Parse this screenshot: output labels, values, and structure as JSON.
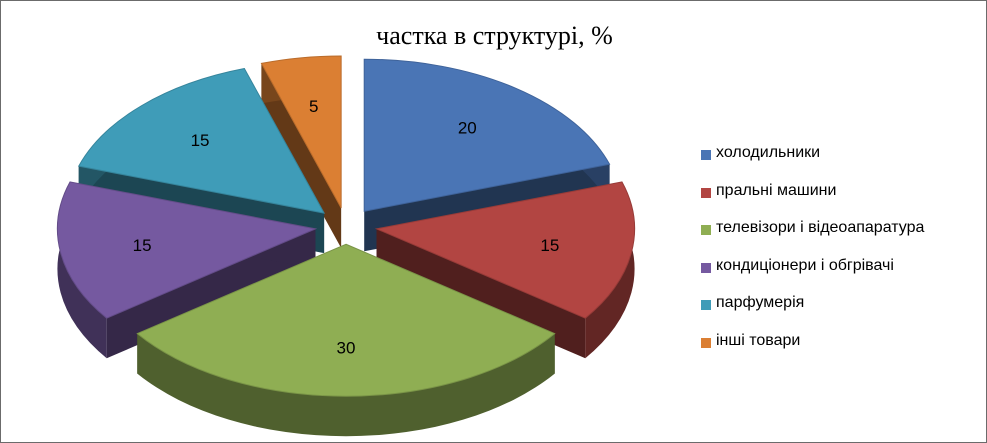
{
  "chart_data": {
    "type": "pie",
    "style": "3d-exploded",
    "title": "частка в структурі, %",
    "categories": [
      "холодильники",
      "пральні машини",
      "телевізори і відеоапаратура",
      "кондиціонери і обгрівачі",
      "парфумерія",
      "інші товари"
    ],
    "values": [
      20,
      15,
      30,
      15,
      15,
      5
    ],
    "colors": [
      "#4a75b5",
      "#b24542",
      "#8fae53",
      "#7559a0",
      "#3f9cb8",
      "#db7f33"
    ],
    "legend_position": "right",
    "data_labels": true
  }
}
